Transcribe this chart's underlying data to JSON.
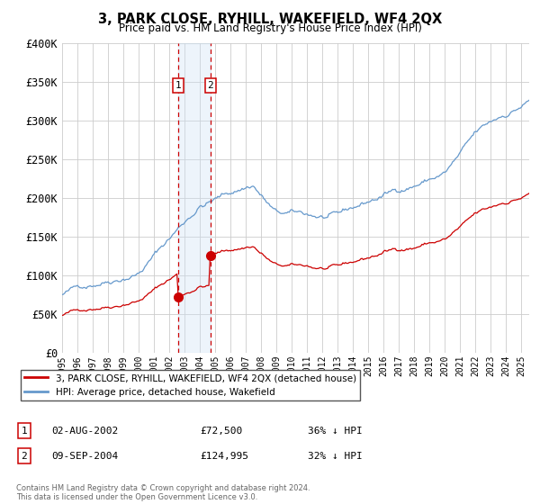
{
  "title": "3, PARK CLOSE, RYHILL, WAKEFIELD, WF4 2QX",
  "subtitle": "Price paid vs. HM Land Registry's House Price Index (HPI)",
  "legend_property": "3, PARK CLOSE, RYHILL, WAKEFIELD, WF4 2QX (detached house)",
  "legend_hpi": "HPI: Average price, detached house, Wakefield",
  "footer": "Contains HM Land Registry data © Crown copyright and database right 2024.\nThis data is licensed under the Open Government Licence v3.0.",
  "transactions": [
    {
      "label": "1",
      "date": "02-AUG-2002",
      "price": 72500,
      "hpi_pct": "36% ↓ HPI",
      "x": 2002.583
    },
    {
      "label": "2",
      "date": "09-SEP-2004",
      "price": 124995,
      "hpi_pct": "32% ↓ HPI",
      "x": 2004.69
    }
  ],
  "ylim": [
    0,
    400000
  ],
  "xlim": [
    1995.0,
    2025.5
  ],
  "yticks": [
    0,
    50000,
    100000,
    150000,
    200000,
    250000,
    300000,
    350000,
    400000
  ],
  "ytick_labels": [
    "£0",
    "£50K",
    "£100K",
    "£150K",
    "£200K",
    "£250K",
    "£300K",
    "£350K",
    "£400K"
  ],
  "property_color": "#cc0000",
  "hpi_color": "#6699cc",
  "grid_color": "#cccccc",
  "background_color": "#ffffff",
  "marker_box_color": "#cc0000",
  "shade_color": "#cce0f5"
}
